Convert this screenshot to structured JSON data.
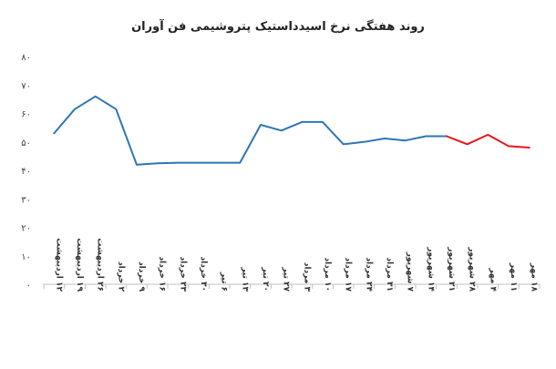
{
  "chart_data": {
    "type": "line",
    "title": "روند هفتگی نرخ اسیدداستیک پتروشیمی فن آوران",
    "xlabel": "",
    "ylabel": "",
    "ylim": [
      0,
      80
    ],
    "yticks": [
      "۰",
      "۱۰",
      "۲۰",
      "۳۰",
      "۴۰",
      "۵۰",
      "۶۰",
      "۷۰",
      "۸۰"
    ],
    "grid": false,
    "legend": "none",
    "categories": [
      "۱۲ اردیبهشت",
      "۱۹ اردیبهشت",
      "۲۶ اردیبهشت",
      "۲ خرداد",
      "۹ خرداد",
      "۱۶ خرداد",
      "۲۳ خرداد",
      "۳۰ خرداد",
      "۶ تیر",
      "۱۳ تیر",
      "۲۰ تیر",
      "۲۷ تیر",
      "۳ مرداد",
      "۱۰ مرداد",
      "۱۷ مرداد",
      "۲۴ مرداد",
      "۳۱ مرداد",
      "۷ شهریور",
      "۱۴ شهریور",
      "۲۱ شهریور",
      "۲۸ شهریور",
      "۴ مهر",
      "۱۱ مهر",
      "۱۸ مهر"
    ],
    "series": [
      {
        "color": "#2E75B6",
        "values": [
          53,
          61.5,
          66,
          61.5,
          42,
          42.5,
          42.7,
          42.7,
          42.7,
          42.7,
          56,
          54,
          57,
          57,
          49.2,
          50,
          51.2,
          50.5,
          52,
          52,
          null,
          null,
          null,
          null
        ]
      },
      {
        "color": "#E8161B",
        "values": [
          null,
          null,
          null,
          null,
          null,
          null,
          null,
          null,
          null,
          null,
          null,
          null,
          null,
          null,
          null,
          null,
          null,
          null,
          null,
          52,
          49.2,
          52.5,
          48.5,
          48
        ]
      }
    ]
  }
}
